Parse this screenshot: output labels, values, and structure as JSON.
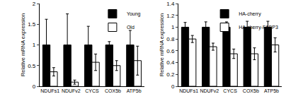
{
  "chart_data": [
    {
      "type": "bar",
      "categories": [
        "NDUFs1",
        "NDUFv2",
        "CYCS",
        "COX5b",
        "ATP5b"
      ],
      "y_label": "Relative mRNA expression",
      "series": [
        {
          "name": "Young",
          "color": "#000000",
          "values": [
            1,
            1,
            1,
            1,
            1
          ],
          "errors": [
            0.62,
            0.75,
            0.45,
            0.08,
            0.35
          ]
        },
        {
          "name": "Old",
          "color": "#ffffff",
          "values": [
            0.35,
            0.1,
            0.58,
            0.5,
            0.62
          ],
          "errors": [
            0.1,
            0.05,
            0.2,
            0.12,
            0.35
          ]
        }
      ],
      "ylim": [
        0,
        2
      ],
      "yticks": [
        0,
        0.5,
        1,
        1.5,
        2
      ],
      "grid": false,
      "legend": "top right"
    },
    {
      "type": "bar",
      "categories": [
        "NDUFs1",
        "NDUFv2",
        "CYCS",
        "COX5b",
        "ATP5b"
      ],
      "y_label": "Relative mRNA expression",
      "series": [
        {
          "name": "HA-cherry",
          "color": "#000000",
          "values": [
            1,
            1,
            1,
            1,
            1
          ],
          "errors": [
            0.08,
            0.09,
            0.09,
            0.1,
            0.1
          ]
        },
        {
          "name": "HA-cherry-FABP3",
          "color": "#ffffff",
          "values": [
            0.8,
            0.67,
            0.55,
            0.55,
            0.7
          ],
          "errors": [
            0.06,
            0.06,
            0.08,
            0.1,
            0.12
          ]
        }
      ],
      "ylim": [
        0,
        1.4
      ],
      "yticks": [
        0,
        0.2,
        0.4,
        0.6,
        0.8,
        1,
        1.2,
        1.4
      ],
      "grid": false,
      "legend": "top right"
    }
  ]
}
